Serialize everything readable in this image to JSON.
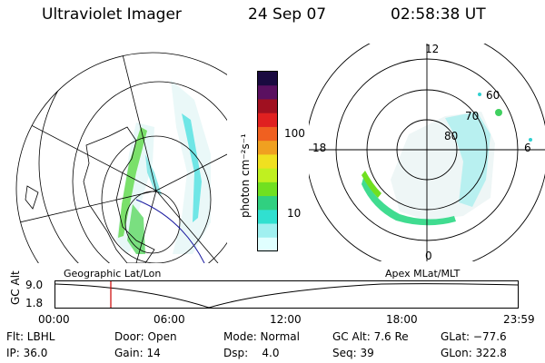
{
  "header": {
    "title": "Ultraviolet Imager",
    "date": "24 Sep 07",
    "time": "02:58:38 UT"
  },
  "colorbar": {
    "label": "photon cm⁻²s⁻¹",
    "ticks": [
      "100",
      "10"
    ],
    "colors": [
      "#1a0a40",
      "#5a1060",
      "#a01020",
      "#e02020",
      "#f06020",
      "#f0a020",
      "#f0e020",
      "#c0f020",
      "#70e020",
      "#30d080",
      "#30e0d0",
      "#a0f0f0",
      "#e0ffff"
    ]
  },
  "polar": {
    "mlt_labels": {
      "top": "12",
      "left": "18",
      "right": "6",
      "bottom": "0"
    },
    "lat_labels": [
      "60",
      "70",
      "80"
    ]
  },
  "left_panel_label": "Geographic Lat/Lon",
  "right_panel_label": "Apex MLat/MLT",
  "altitude_plot": {
    "axis_title": "GC Alt",
    "y_ticks": [
      "9.0",
      "1.8"
    ],
    "x_ticks": [
      "00:00",
      "06:00",
      "12:00",
      "18:00",
      "23:59"
    ],
    "marker_color": "#cc0000"
  },
  "info": {
    "row1": [
      {
        "name": "flt",
        "text": "Flt: LBHL"
      },
      {
        "name": "door",
        "text": "Door: Open"
      },
      {
        "name": "mode",
        "text": "Mode: Normal"
      },
      {
        "name": "gc-alt",
        "text": "GC Alt: 7.6 Re"
      },
      {
        "name": "glat",
        "text": "GLat: −77.6"
      }
    ],
    "row2": [
      {
        "name": "ip",
        "text": "IP: 36.0"
      },
      {
        "name": "gain",
        "text": "Gain: 14"
      },
      {
        "name": "dsp",
        "text": "Dsp:    4.0"
      },
      {
        "name": "seq",
        "text": "Seq: 39"
      },
      {
        "name": "glon",
        "text": "GLon: 322.8"
      }
    ]
  }
}
